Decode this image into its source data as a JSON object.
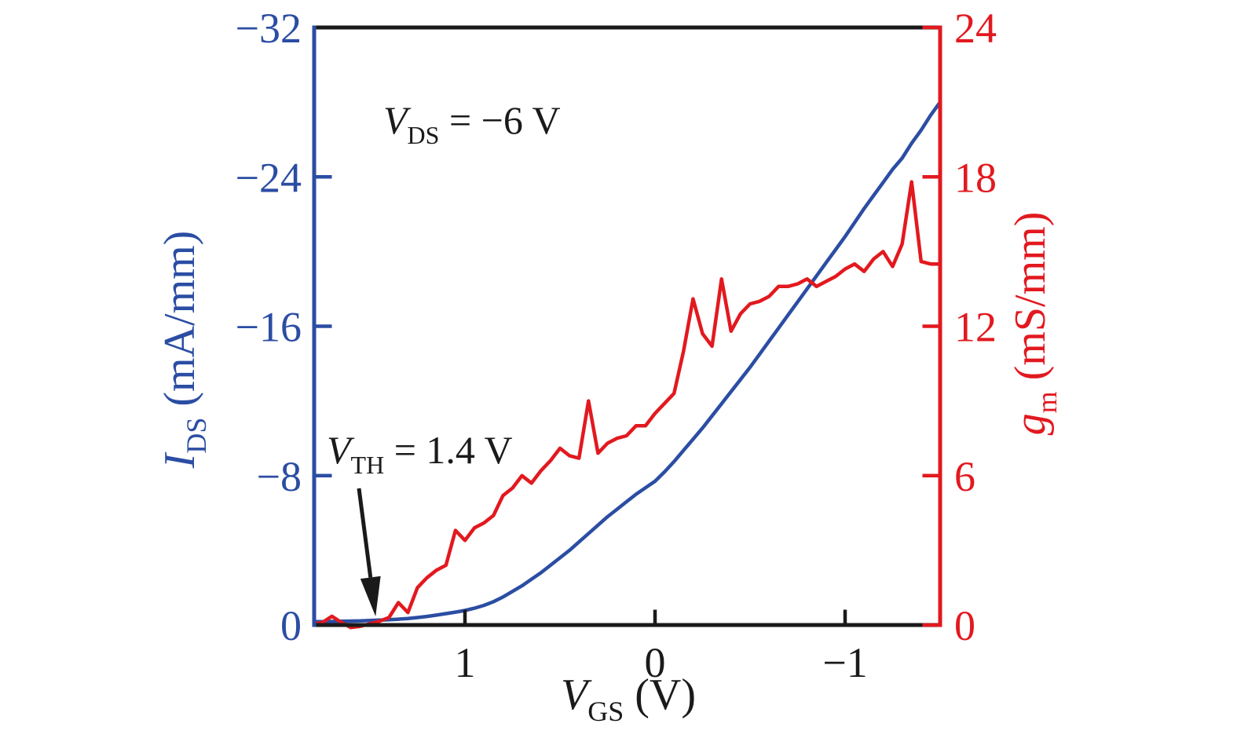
{
  "figure": {
    "description": "Transfer characteristics of a transistor: drain current and transconductance versus gate-source voltage",
    "background_color": "#ffffff",
    "frame_color": "#1a1a1a"
  },
  "chart_data": {
    "type": "line",
    "title": "",
    "grid": false,
    "legend": "none",
    "x_axis": {
      "label_parts": [
        {
          "t": "V",
          "s": "i"
        },
        {
          "t": "GS",
          "s": "sub"
        },
        {
          "t": " (V)",
          "s": ""
        }
      ],
      "range": [
        1.7934,
        -1.5
      ],
      "reversed": true,
      "tick_values": [
        1,
        0,
        -1
      ],
      "tick_labels": [
        "1",
        "0",
        "−1"
      ],
      "color": "#1a1a1a"
    },
    "left_axis": {
      "label_parts": [
        {
          "t": "I",
          "s": "i"
        },
        {
          "t": "DS",
          "s": "sub"
        },
        {
          "t": " (mA/mm)",
          "s": ""
        }
      ],
      "range": [
        0,
        32
      ],
      "displayed_as_negative": true,
      "tick_values": [
        0,
        8,
        16,
        24,
        32
      ],
      "tick_labels": [
        "0",
        "−8",
        "−16",
        "−24",
        "−32"
      ],
      "tick_marks": [
        8,
        16,
        24
      ],
      "color": "#2b4da3"
    },
    "right_axis": {
      "label_parts": [
        {
          "t": "g",
          "s": "i"
        },
        {
          "t": "m",
          "s": "sub"
        },
        {
          "t": " (mS/mm)",
          "s": ""
        }
      ],
      "range": [
        0,
        24
      ],
      "tick_values": [
        0,
        6,
        12,
        18,
        24
      ],
      "tick_labels": [
        "0",
        "6",
        "12",
        "18",
        "24"
      ],
      "tick_marks": [
        0,
        6,
        12,
        18,
        24
      ],
      "color": "#e2191f"
    },
    "x_values": [
      1.79,
      1.75,
      1.7,
      1.65,
      1.6,
      1.55,
      1.5,
      1.45,
      1.4,
      1.35,
      1.3,
      1.25,
      1.2,
      1.15,
      1.1,
      1.05,
      1.0,
      0.95,
      0.9,
      0.85,
      0.8,
      0.75,
      0.7,
      0.65,
      0.6,
      0.55,
      0.5,
      0.45,
      0.4,
      0.35,
      0.3,
      0.25,
      0.2,
      0.15,
      0.1,
      0.05,
      0.0,
      -0.05,
      -0.1,
      -0.15,
      -0.2,
      -0.25,
      -0.3,
      -0.35,
      -0.4,
      -0.45,
      -0.5,
      -0.55,
      -0.6,
      -0.65,
      -0.7,
      -0.75,
      -0.8,
      -0.85,
      -0.9,
      -0.95,
      -1.0,
      -1.05,
      -1.1,
      -1.15,
      -1.2,
      -1.25,
      -1.3,
      -1.35,
      -1.4,
      -1.45,
      -1.5
    ],
    "series": [
      {
        "name": "IDS_magnitude_mA_per_mm",
        "axis": "left",
        "color": "#2b4da3",
        "values": [
          0.18,
          0.18,
          0.19,
          0.2,
          0.21,
          0.22,
          0.24,
          0.26,
          0.28,
          0.31,
          0.35,
          0.4,
          0.46,
          0.53,
          0.61,
          0.69,
          0.78,
          0.9,
          1.05,
          1.25,
          1.5,
          1.8,
          2.1,
          2.45,
          2.8,
          3.2,
          3.6,
          4.0,
          4.45,
          4.9,
          5.35,
          5.8,
          6.2,
          6.6,
          7.0,
          7.35,
          7.7,
          8.2,
          8.75,
          9.35,
          9.95,
          10.55,
          11.2,
          11.85,
          12.5,
          13.15,
          13.8,
          14.5,
          15.2,
          15.9,
          16.6,
          17.3,
          18.0,
          18.7,
          19.4,
          20.1,
          20.8,
          21.55,
          22.3,
          23.0,
          23.7,
          24.4,
          25.0,
          25.8,
          26.5,
          27.3,
          28.0
        ]
      },
      {
        "name": "gm_mS_per_mm",
        "axis": "right",
        "color": "#e2191f",
        "values": [
          0.05,
          0.1,
          0.35,
          0.1,
          -0.1,
          -0.05,
          0.05,
          0.15,
          0.3,
          0.9,
          0.5,
          1.5,
          1.9,
          2.2,
          2.4,
          3.8,
          3.4,
          3.9,
          4.1,
          4.4,
          5.2,
          5.5,
          6.0,
          5.7,
          6.2,
          6.6,
          7.1,
          6.8,
          6.7,
          9.0,
          6.9,
          7.3,
          7.5,
          7.6,
          8.0,
          8.0,
          8.5,
          8.9,
          9.3,
          11.0,
          13.1,
          11.7,
          11.2,
          13.9,
          11.8,
          12.5,
          12.9,
          13.0,
          13.2,
          13.6,
          13.6,
          13.7,
          13.9,
          13.6,
          13.8,
          14.0,
          14.3,
          14.5,
          14.2,
          14.7,
          15.0,
          14.4,
          15.3,
          17.8,
          14.6,
          14.5,
          14.5
        ]
      }
    ],
    "annotations": [
      {
        "id": "vds-condition",
        "parts": [
          {
            "t": "V",
            "s": "i"
          },
          {
            "t": "DS",
            "s": "sub"
          },
          {
            "t": " = −6 V",
            "s": ""
          }
        ],
        "color": "#1a1a1a"
      },
      {
        "id": "vth-callout",
        "parts": [
          {
            "t": "V",
            "s": "i"
          },
          {
            "t": "TH",
            "s": "sub"
          },
          {
            "t": " = 1.4 V",
            "s": ""
          }
        ],
        "color": "#1a1a1a",
        "arrow_target_v": 1.4
      }
    ]
  }
}
